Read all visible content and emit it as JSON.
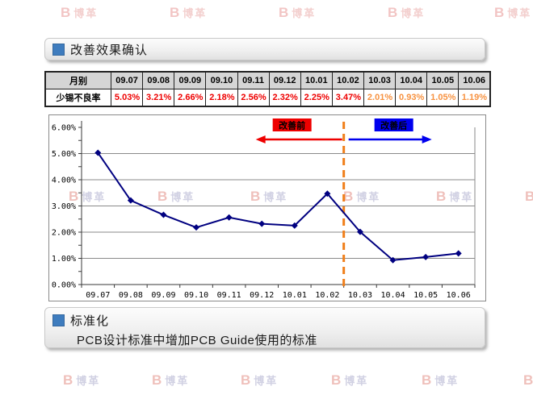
{
  "watermark": {
    "glyph": "B",
    "text": "博革"
  },
  "sections": {
    "effect": {
      "title": "改善效果确认"
    },
    "standard": {
      "title": "标准化",
      "body": "PCB设计标准中增加PCB Guide使用的标准"
    }
  },
  "table": {
    "corner_label": "月别",
    "months": [
      "09.07",
      "09.08",
      "09.09",
      "09.10",
      "09.11",
      "09.12",
      "10.01",
      "10.02",
      "10.03",
      "10.04",
      "10.05",
      "10.06"
    ],
    "row_label": "少锡不良率",
    "values": [
      "5.03%",
      "3.21%",
      "2.66%",
      "2.18%",
      "2.56%",
      "2.32%",
      "2.25%",
      "3.47%",
      "2.01%",
      "0.93%",
      "1.05%",
      "1.19%"
    ],
    "value_colors": [
      "#ee0000",
      "#ee0000",
      "#ee0000",
      "#ee0000",
      "#ee0000",
      "#ee0000",
      "#ee0000",
      "#ee0000",
      "#f79240",
      "#f79240",
      "#f79240",
      "#f79240"
    ],
    "header_bg": "#d5d5d5"
  },
  "chart_data": {
    "type": "line",
    "title": "",
    "xlabel": "",
    "ylabel": "",
    "categories": [
      "09.07",
      "09.08",
      "09.09",
      "09.10",
      "09.11",
      "09.12",
      "10.01",
      "10.02",
      "10.03",
      "10.04",
      "10.05",
      "10.06"
    ],
    "values": [
      5.03,
      3.21,
      2.66,
      2.18,
      2.56,
      2.32,
      2.25,
      3.47,
      2.01,
      0.93,
      1.05,
      1.19
    ],
    "ylim": [
      0,
      6
    ],
    "ytick_labels": [
      "0.00%",
      "1.00%",
      "2.00%",
      "3.00%",
      "4.00%",
      "5.00%",
      "6.00%"
    ],
    "grid": true,
    "legend": "none",
    "line_color": "#000080",
    "marker": "diamond",
    "gridline_color": "#8a8a8a",
    "divider_after_index": 7,
    "divider_color": "#f07f1a",
    "annotations": {
      "before": {
        "label": "改善前",
        "bg_color": "#ee0000",
        "arrow_direction": "left"
      },
      "after": {
        "label": "改善后",
        "bg_color": "#0000ee",
        "arrow_direction": "right"
      }
    }
  }
}
